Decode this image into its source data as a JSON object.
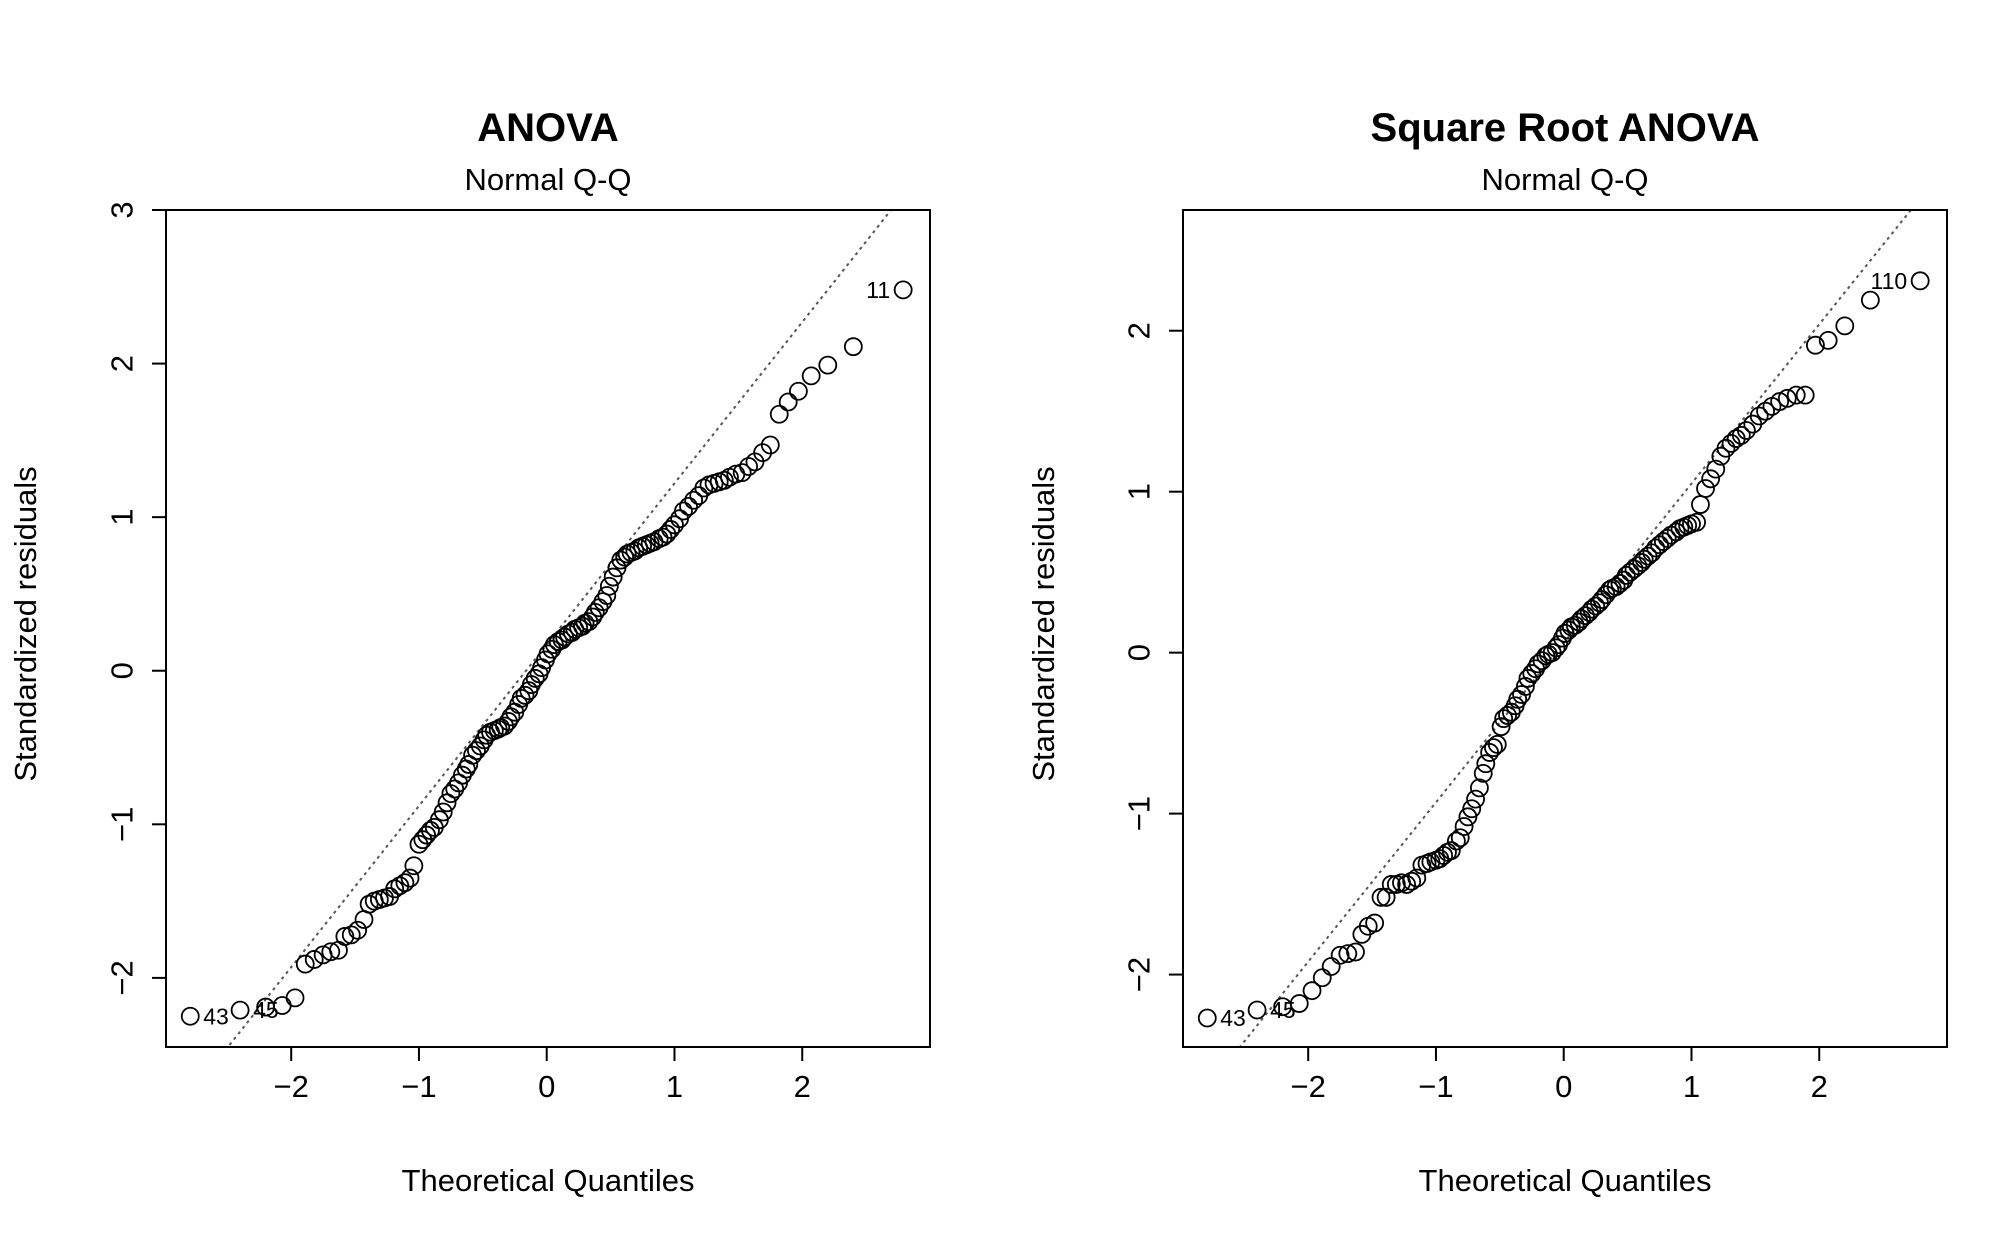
{
  "chart_data": [
    {
      "type": "scatter",
      "title": "ANOVA",
      "subtitle": "Normal Q-Q",
      "xlabel": "Theoretical Quantiles",
      "ylabel": "Standardized residuals",
      "xlim": [
        -2.98,
        3.0
      ],
      "ylim": [
        -2.45,
        3.0
      ],
      "xticks": [
        -2,
        -1,
        0,
        1,
        2
      ],
      "yticks": [
        -2,
        -1,
        0,
        1,
        2,
        3
      ],
      "reference_line": {
        "style": "dotted",
        "slope": 1.05,
        "intercept": 0.17
      },
      "annotations": [
        {
          "text": "11",
          "x": 2.79,
          "y": 2.48
        },
        {
          "text": "43",
          "x": -2.79,
          "y": -2.25
        },
        {
          "text": "45",
          "x": -2.4,
          "y": -2.21
        }
      ],
      "series": [
        {
          "points": [
            [
              -2.79,
              -2.25
            ],
            [
              -2.4,
              -2.21
            ],
            [
              -2.2,
              -2.19
            ],
            [
              -2.07,
              -2.18
            ],
            [
              -1.97,
              -2.13
            ],
            [
              -1.89,
              -1.91
            ],
            [
              -1.82,
              -1.88
            ],
            [
              -1.75,
              -1.85
            ],
            [
              -1.69,
              -1.83
            ],
            [
              -1.63,
              -1.82
            ],
            [
              -1.58,
              -1.73
            ],
            [
              -1.53,
              -1.72
            ],
            [
              -1.48,
              -1.69
            ],
            [
              -1.43,
              -1.62
            ],
            [
              -1.39,
              -1.52
            ],
            [
              -1.35,
              -1.5
            ],
            [
              -1.31,
              -1.49
            ],
            [
              -1.27,
              -1.48
            ],
            [
              -1.23,
              -1.47
            ],
            [
              -1.19,
              -1.42
            ],
            [
              -1.15,
              -1.4
            ],
            [
              -1.11,
              -1.38
            ],
            [
              -1.07,
              -1.35
            ],
            [
              -1.04,
              -1.27
            ],
            [
              -1.0,
              -1.13
            ],
            [
              -0.97,
              -1.1
            ],
            [
              -0.94,
              -1.07
            ],
            [
              -0.91,
              -1.04
            ],
            [
              -0.88,
              -1.02
            ],
            [
              -0.84,
              -0.97
            ],
            [
              -0.81,
              -0.92
            ],
            [
              -0.78,
              -0.86
            ],
            [
              -0.75,
              -0.8
            ],
            [
              -0.72,
              -0.77
            ],
            [
              -0.69,
              -0.73
            ],
            [
              -0.66,
              -0.68
            ],
            [
              -0.63,
              -0.64
            ],
            [
              -0.61,
              -0.61
            ],
            [
              -0.58,
              -0.55
            ],
            [
              -0.55,
              -0.52
            ],
            [
              -0.52,
              -0.49
            ],
            [
              -0.49,
              -0.45
            ],
            [
              -0.47,
              -0.42
            ],
            [
              -0.44,
              -0.4
            ],
            [
              -0.41,
              -0.39
            ],
            [
              -0.38,
              -0.38
            ],
            [
              -0.36,
              -0.37
            ],
            [
              -0.33,
              -0.36
            ],
            [
              -0.3,
              -0.33
            ],
            [
              -0.28,
              -0.3
            ],
            [
              -0.25,
              -0.27
            ],
            [
              -0.22,
              -0.22
            ],
            [
              -0.2,
              -0.18
            ],
            [
              -0.17,
              -0.16
            ],
            [
              -0.14,
              -0.13
            ],
            [
              -0.12,
              -0.09
            ],
            [
              -0.09,
              -0.05
            ],
            [
              -0.06,
              -0.02
            ],
            [
              -0.04,
              0.02
            ],
            [
              -0.01,
              0.07
            ],
            [
              0.01,
              0.11
            ],
            [
              0.04,
              0.14
            ],
            [
              0.06,
              0.17
            ],
            [
              0.09,
              0.19
            ],
            [
              0.12,
              0.2
            ],
            [
              0.14,
              0.22
            ],
            [
              0.17,
              0.24
            ],
            [
              0.2,
              0.25
            ],
            [
              0.22,
              0.27
            ],
            [
              0.25,
              0.28
            ],
            [
              0.28,
              0.29
            ],
            [
              0.3,
              0.31
            ],
            [
              0.33,
              0.32
            ],
            [
              0.36,
              0.35
            ],
            [
              0.38,
              0.38
            ],
            [
              0.41,
              0.41
            ],
            [
              0.44,
              0.45
            ],
            [
              0.47,
              0.49
            ],
            [
              0.49,
              0.55
            ],
            [
              0.52,
              0.61
            ],
            [
              0.55,
              0.67
            ],
            [
              0.58,
              0.72
            ],
            [
              0.61,
              0.74
            ],
            [
              0.63,
              0.76
            ],
            [
              0.66,
              0.77
            ],
            [
              0.69,
              0.78
            ],
            [
              0.72,
              0.8
            ],
            [
              0.75,
              0.81
            ],
            [
              0.78,
              0.82
            ],
            [
              0.81,
              0.83
            ],
            [
              0.84,
              0.84
            ],
            [
              0.88,
              0.86
            ],
            [
              0.91,
              0.87
            ],
            [
              0.94,
              0.89
            ],
            [
              0.97,
              0.92
            ],
            [
              1.0,
              0.95
            ],
            [
              1.04,
              0.99
            ],
            [
              1.07,
              1.04
            ],
            [
              1.11,
              1.07
            ],
            [
              1.15,
              1.11
            ],
            [
              1.19,
              1.14
            ],
            [
              1.23,
              1.19
            ],
            [
              1.27,
              1.21
            ],
            [
              1.31,
              1.22
            ],
            [
              1.35,
              1.23
            ],
            [
              1.39,
              1.24
            ],
            [
              1.43,
              1.26
            ],
            [
              1.48,
              1.28
            ],
            [
              1.53,
              1.29
            ],
            [
              1.58,
              1.33
            ],
            [
              1.63,
              1.36
            ],
            [
              1.69,
              1.42
            ],
            [
              1.75,
              1.47
            ],
            [
              1.82,
              1.67
            ],
            [
              1.89,
              1.75
            ],
            [
              1.97,
              1.82
            ],
            [
              2.07,
              1.92
            ],
            [
              2.2,
              1.99
            ],
            [
              2.4,
              2.11
            ],
            [
              2.79,
              2.48
            ]
          ]
        }
      ]
    },
    {
      "type": "scatter",
      "title": "Square Root ANOVA",
      "subtitle": "Normal Q-Q",
      "xlabel": "Theoretical Quantiles",
      "ylabel": "Standardized residuals",
      "xlim": [
        -2.98,
        3.0
      ],
      "ylim": [
        -2.45,
        2.75
      ],
      "xticks": [
        -2,
        -1,
        0,
        1,
        2
      ],
      "yticks": [
        -2,
        -1,
        0,
        1,
        2
      ],
      "reference_line": {
        "style": "dotted",
        "slope": 0.99,
        "intercept": 0.06
      },
      "annotations": [
        {
          "text": "110",
          "x": 2.79,
          "y": 2.31
        },
        {
          "text": "43",
          "x": -2.79,
          "y": -2.27
        },
        {
          "text": "45",
          "x": -2.4,
          "y": -2.22
        }
      ],
      "series": [
        {
          "points": [
            [
              -2.79,
              -2.27
            ],
            [
              -2.4,
              -2.22
            ],
            [
              -2.2,
              -2.2
            ],
            [
              -2.07,
              -2.18
            ],
            [
              -1.97,
              -2.1
            ],
            [
              -1.89,
              -2.02
            ],
            [
              -1.82,
              -1.95
            ],
            [
              -1.75,
              -1.88
            ],
            [
              -1.69,
              -1.87
            ],
            [
              -1.63,
              -1.86
            ],
            [
              -1.58,
              -1.75
            ],
            [
              -1.53,
              -1.7
            ],
            [
              -1.48,
              -1.68
            ],
            [
              -1.43,
              -1.52
            ],
            [
              -1.39,
              -1.52
            ],
            [
              -1.35,
              -1.44
            ],
            [
              -1.31,
              -1.44
            ],
            [
              -1.27,
              -1.43
            ],
            [
              -1.23,
              -1.44
            ],
            [
              -1.19,
              -1.42
            ],
            [
              -1.15,
              -1.4
            ],
            [
              -1.11,
              -1.32
            ],
            [
              -1.07,
              -1.31
            ],
            [
              -1.04,
              -1.3
            ],
            [
              -1.0,
              -1.29
            ],
            [
              -0.97,
              -1.28
            ],
            [
              -0.94,
              -1.26
            ],
            [
              -0.91,
              -1.24
            ],
            [
              -0.88,
              -1.23
            ],
            [
              -0.84,
              -1.17
            ],
            [
              -0.81,
              -1.15
            ],
            [
              -0.78,
              -1.08
            ],
            [
              -0.75,
              -1.02
            ],
            [
              -0.72,
              -0.97
            ],
            [
              -0.69,
              -0.91
            ],
            [
              -0.66,
              -0.84
            ],
            [
              -0.63,
              -0.75
            ],
            [
              -0.61,
              -0.69
            ],
            [
              -0.58,
              -0.62
            ],
            [
              -0.55,
              -0.59
            ],
            [
              -0.52,
              -0.57
            ],
            [
              -0.49,
              -0.46
            ],
            [
              -0.47,
              -0.41
            ],
            [
              -0.44,
              -0.39
            ],
            [
              -0.41,
              -0.37
            ],
            [
              -0.38,
              -0.33
            ],
            [
              -0.36,
              -0.29
            ],
            [
              -0.33,
              -0.26
            ],
            [
              -0.3,
              -0.21
            ],
            [
              -0.28,
              -0.16
            ],
            [
              -0.25,
              -0.13
            ],
            [
              -0.22,
              -0.1
            ],
            [
              -0.2,
              -0.07
            ],
            [
              -0.17,
              -0.05
            ],
            [
              -0.14,
              -0.02
            ],
            [
              -0.12,
              -0.01
            ],
            [
              -0.09,
              0.0
            ],
            [
              -0.06,
              0.03
            ],
            [
              -0.04,
              0.05
            ],
            [
              -0.01,
              0.09
            ],
            [
              0.01,
              0.12
            ],
            [
              0.04,
              0.14
            ],
            [
              0.06,
              0.16
            ],
            [
              0.09,
              0.17
            ],
            [
              0.12,
              0.19
            ],
            [
              0.14,
              0.21
            ],
            [
              0.17,
              0.23
            ],
            [
              0.2,
              0.25
            ],
            [
              0.22,
              0.27
            ],
            [
              0.25,
              0.29
            ],
            [
              0.28,
              0.31
            ],
            [
              0.3,
              0.33
            ],
            [
              0.33,
              0.36
            ],
            [
              0.36,
              0.39
            ],
            [
              0.38,
              0.4
            ],
            [
              0.41,
              0.41
            ],
            [
              0.44,
              0.43
            ],
            [
              0.47,
              0.45
            ],
            [
              0.49,
              0.48
            ],
            [
              0.52,
              0.5
            ],
            [
              0.55,
              0.52
            ],
            [
              0.58,
              0.54
            ],
            [
              0.61,
              0.56
            ],
            [
              0.63,
              0.58
            ],
            [
              0.66,
              0.6
            ],
            [
              0.69,
              0.62
            ],
            [
              0.72,
              0.65
            ],
            [
              0.75,
              0.67
            ],
            [
              0.78,
              0.69
            ],
            [
              0.81,
              0.71
            ],
            [
              0.84,
              0.73
            ],
            [
              0.88,
              0.75
            ],
            [
              0.91,
              0.77
            ],
            [
              0.94,
              0.78
            ],
            [
              0.97,
              0.79
            ],
            [
              1.0,
              0.8
            ],
            [
              1.04,
              0.81
            ],
            [
              1.07,
              0.92
            ],
            [
              1.11,
              1.02
            ],
            [
              1.15,
              1.08
            ],
            [
              1.19,
              1.14
            ],
            [
              1.23,
              1.22
            ],
            [
              1.27,
              1.27
            ],
            [
              1.31,
              1.3
            ],
            [
              1.35,
              1.33
            ],
            [
              1.39,
              1.35
            ],
            [
              1.43,
              1.38
            ],
            [
              1.48,
              1.42
            ],
            [
              1.53,
              1.47
            ],
            [
              1.58,
              1.5
            ],
            [
              1.63,
              1.53
            ],
            [
              1.69,
              1.56
            ],
            [
              1.75,
              1.58
            ],
            [
              1.82,
              1.6
            ],
            [
              1.89,
              1.6
            ],
            [
              1.97,
              1.91
            ],
            [
              2.07,
              1.94
            ],
            [
              2.2,
              2.03
            ],
            [
              2.4,
              2.19
            ],
            [
              2.79,
              2.31
            ]
          ]
        }
      ]
    }
  ]
}
